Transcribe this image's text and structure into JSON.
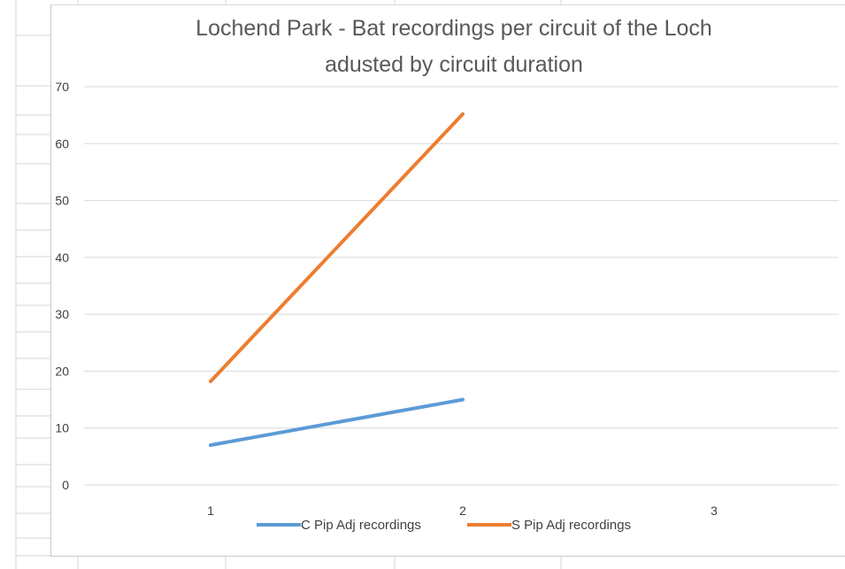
{
  "colors": {
    "background": "#ffffff",
    "gridline": "#d9d9d9",
    "series_c_pip": "#5b9bd5",
    "series_s_pip": "#ed7d31",
    "text": "#595959"
  },
  "chart_data": {
    "type": "line",
    "title_line1": "Lochend Park - Bat recordings per circuit of the Loch",
    "title_line2": "adusted by circuit duration",
    "xlabel": "",
    "ylabel": "",
    "categories": [
      "1",
      "2",
      "3"
    ],
    "ylim": [
      0,
      70
    ],
    "yticks": [
      "70",
      "60",
      "50",
      "40",
      "30",
      "20",
      "10",
      "0"
    ],
    "grid": true,
    "legend_position": "bottom",
    "series": [
      {
        "name": "C Pip Adj recordings",
        "color": "#5b9bd5",
        "values": [
          7,
          15,
          null
        ]
      },
      {
        "name": "S Pip Adj recordings",
        "color": "#ed7d31",
        "values": [
          18.2,
          65.2,
          null
        ]
      }
    ]
  }
}
